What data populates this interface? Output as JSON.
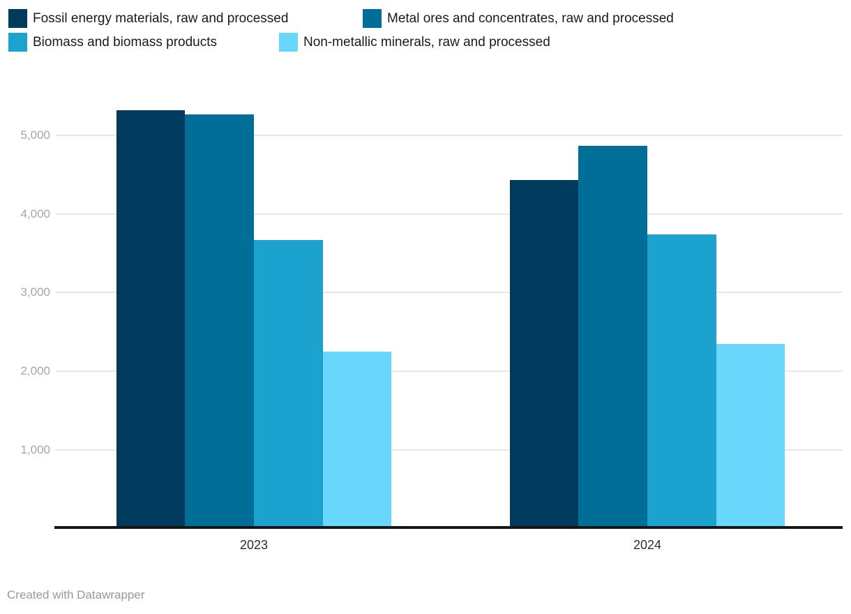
{
  "chart_data": {
    "type": "bar",
    "title": "",
    "xlabel": "",
    "ylabel": "",
    "categories": [
      "2023",
      "2024"
    ],
    "series": [
      {
        "name": "Fossil energy materials, raw and processed",
        "color": "#003B5E",
        "values": [
          5320,
          4430
        ]
      },
      {
        "name": "Metal ores and concentrates, raw and processed",
        "color": "#006E96",
        "values": [
          5270,
          4870
        ]
      },
      {
        "name": "Biomass and biomass products",
        "color": "#1CA2CE",
        "values": [
          3670,
          3740
        ]
      },
      {
        "name": "Non-metallic minerals, raw and processed",
        "color": "#69D6FB",
        "values": [
          2250,
          2350
        ]
      }
    ],
    "ylim": [
      0,
      5000
    ],
    "yticks": [
      1000,
      2000,
      3000,
      4000,
      5000
    ],
    "ytick_labels": [
      "1,000",
      "2,000",
      "3,000",
      "4,000",
      "5,000"
    ],
    "grid": true,
    "legend_position": "top-left, two rows",
    "axis_line_color": "#151515",
    "gridline_color": "#e7e7e7"
  },
  "footer": {
    "credit": "Created with Datawrapper"
  }
}
